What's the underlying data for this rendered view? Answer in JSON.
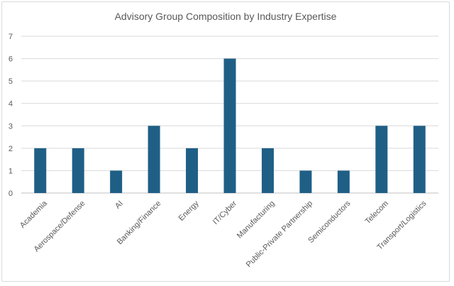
{
  "chart_data": {
    "type": "bar",
    "title": "Advisory Group Composition by Industry Expertise",
    "categories": [
      "Academia",
      "Aerospace/Defense",
      "AI",
      "Banking/Finance",
      "Energy",
      "IT/Cyber",
      "Manufacturing",
      "Public-Private Partnership",
      "Semiconductors",
      "Telecom",
      "Transport/Logistics"
    ],
    "values": [
      2,
      2,
      1,
      3,
      2,
      6,
      2,
      1,
      1,
      3,
      3
    ],
    "ylim": [
      0,
      7
    ],
    "yticks": [
      0,
      1,
      2,
      3,
      4,
      5,
      6,
      7
    ],
    "grid": true,
    "legend": "none",
    "colors": {
      "bar": "#1f5f86"
    }
  }
}
